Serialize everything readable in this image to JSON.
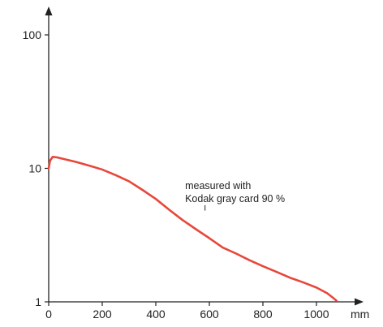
{
  "chart_data": {
    "type": "line",
    "title": "",
    "xlabel": "",
    "ylabel": "",
    "x_unit": "mm",
    "y_scale": "log",
    "xlim": [
      0,
      1110
    ],
    "ylim": [
      1,
      100
    ],
    "x_ticks": [
      0,
      200,
      400,
      600,
      800,
      1000
    ],
    "x_tick_labels": [
      "0",
      "200",
      "400",
      "600",
      "800",
      "1000"
    ],
    "y_ticks": [
      1,
      10,
      100
    ],
    "y_tick_labels": [
      "1",
      "10",
      "100"
    ],
    "grid": false,
    "legend": "none",
    "colors": {
      "axis": "#222222",
      "series": "#e8473a"
    },
    "annotation": {
      "lines": [
        "measured with",
        "Kodak gray card 90 %"
      ],
      "pointer_x": 590,
      "pointer_y_top": 4.3,
      "pointer_y_bottom": 3.4,
      "text_x": 570,
      "text_y": 7.0
    },
    "series": [
      {
        "x": [
          0,
          5,
          15,
          30,
          60,
          100,
          150,
          200,
          250,
          300,
          350,
          400,
          450,
          500,
          550,
          600,
          650,
          700,
          750,
          800,
          850,
          900,
          950,
          1000,
          1040,
          1060,
          1075
        ],
        "y": [
          10.0,
          11.4,
          12.2,
          12.1,
          11.7,
          11.2,
          10.5,
          9.8,
          8.9,
          8.0,
          6.9,
          5.9,
          4.9,
          4.1,
          3.5,
          3.0,
          2.55,
          2.3,
          2.05,
          1.85,
          1.68,
          1.52,
          1.4,
          1.28,
          1.16,
          1.08,
          1.02
        ]
      }
    ]
  }
}
